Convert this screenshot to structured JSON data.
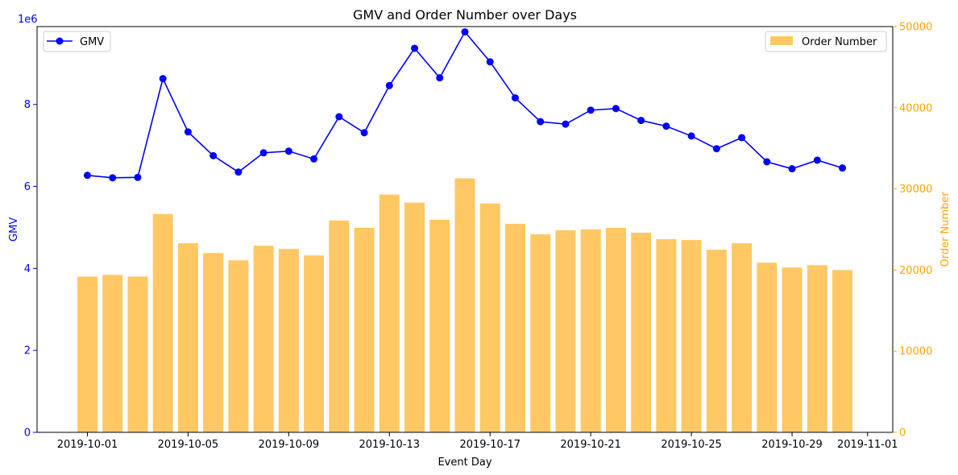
{
  "chart_data": {
    "type": "bar+line",
    "title": "GMV and Order Number over Days",
    "xlabel": "Event Day",
    "ylabel_left": "GMV",
    "ylabel_right": "Order Number",
    "left_axis_multiplier": "1e6",
    "x_dates": [
      "2019-10-01",
      "2019-10-02",
      "2019-10-03",
      "2019-10-04",
      "2019-10-05",
      "2019-10-06",
      "2019-10-07",
      "2019-10-08",
      "2019-10-09",
      "2019-10-10",
      "2019-10-11",
      "2019-10-12",
      "2019-10-13",
      "2019-10-14",
      "2019-10-15",
      "2019-10-16",
      "2019-10-17",
      "2019-10-18",
      "2019-10-19",
      "2019-10-20",
      "2019-10-21",
      "2019-10-22",
      "2019-10-23",
      "2019-10-24",
      "2019-10-25",
      "2019-10-26",
      "2019-10-27",
      "2019-10-28",
      "2019-10-29",
      "2019-10-30",
      "2019-10-31"
    ],
    "xlim": [
      "2019-09-29",
      "2019-11-02"
    ],
    "x_ticks": [
      "2019-10-01",
      "2019-10-05",
      "2019-10-09",
      "2019-10-13",
      "2019-10-17",
      "2019-10-21",
      "2019-10-25",
      "2019-10-29",
      "2019-11-01"
    ],
    "series": [
      {
        "name": "GMV",
        "type": "line",
        "axis": "left",
        "color": "#0000ff",
        "values": [
          6.27,
          6.21,
          6.22,
          8.63,
          7.33,
          6.75,
          6.35,
          6.82,
          6.86,
          6.67,
          7.7,
          7.31,
          8.46,
          9.37,
          8.65,
          9.77,
          9.04,
          8.16,
          7.58,
          7.52,
          7.86,
          7.9,
          7.61,
          7.47,
          7.23,
          6.92,
          7.19,
          6.6,
          6.43,
          6.64,
          6.45
        ]
      },
      {
        "name": "Order Number",
        "type": "bar",
        "axis": "right",
        "color": "#ffc864",
        "values": [
          19200,
          19400,
          19200,
          26900,
          23300,
          22100,
          21200,
          23000,
          22600,
          21800,
          26100,
          25200,
          29300,
          28300,
          26200,
          31300,
          28200,
          25700,
          24400,
          24900,
          25000,
          25200,
          24600,
          23800,
          23700,
          22500,
          23300,
          20900,
          20300,
          20600,
          20000
        ]
      }
    ],
    "y_left_lim": [
      0,
      9.9
    ],
    "y_left_ticks": [
      0,
      2,
      4,
      6,
      8
    ],
    "y_right_lim": [
      0,
      50000
    ],
    "y_right_ticks": [
      0,
      10000,
      20000,
      30000,
      40000,
      50000
    ],
    "legend_left": "upper-left",
    "legend_right": "upper-right",
    "grid": false,
    "colors": {
      "left_axis": "#0000ff",
      "right_axis": "#ffa500"
    }
  }
}
